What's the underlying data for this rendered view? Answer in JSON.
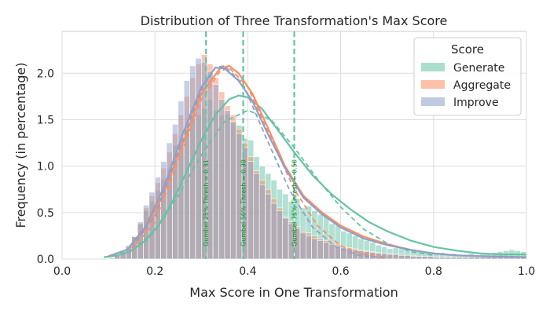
{
  "chart_data": {
    "type": "histogram",
    "title": "Distribution of Three Transformation's Max Score",
    "xlabel": "Max Score in One Transformation",
    "ylabel": "Frequency (in percentage)",
    "xlim": [
      0.0,
      1.0
    ],
    "ylim": [
      0.0,
      2.45
    ],
    "xticks": [
      "0.0",
      "0.2",
      "0.4",
      "0.6",
      "0.8",
      "1.0"
    ],
    "yticks": [
      "0.0",
      "0.5",
      "1.0",
      "1.5",
      "2.0"
    ],
    "xtick_values": [
      0.0,
      0.2,
      0.4,
      0.6,
      0.8,
      1.0
    ],
    "ytick_values": [
      0.0,
      0.5,
      1.0,
      1.5,
      2.0
    ],
    "grid": true,
    "legend": {
      "title": "Score",
      "position": "top-right"
    },
    "bin_start": 0.1,
    "bin_width": 0.0125,
    "series": [
      {
        "name": "Generate",
        "color": "#66c2a5",
        "values": [
          0.02,
          0.05,
          0.09,
          0.15,
          0.25,
          0.38,
          0.52,
          0.62,
          0.74,
          0.86,
          0.98,
          1.22,
          1.25,
          1.4,
          1.55,
          1.55,
          1.62,
          1.72,
          1.6,
          1.55,
          1.56,
          1.46,
          1.44,
          1.3,
          1.28,
          1.1,
          1.0,
          0.92,
          0.85,
          0.75,
          0.7,
          0.62,
          0.65,
          0.55,
          0.57,
          0.52,
          0.48,
          0.46,
          0.38,
          0.36,
          0.3,
          0.28,
          0.25,
          0.22,
          0.2,
          0.18,
          0.15,
          0.13,
          0.11,
          0.12,
          0.11,
          0.09,
          0.1,
          0.08,
          0.07,
          0.08,
          0.06,
          0.07,
          0.05,
          0.06,
          0.05,
          0.05,
          0.06,
          0.04,
          0.05,
          0.06,
          0.07,
          0.08,
          0.09,
          0.1,
          0.09,
          0.08
        ],
        "kde": [
          [
            0.09,
            0.02
          ],
          [
            0.12,
            0.04
          ],
          [
            0.15,
            0.09
          ],
          [
            0.18,
            0.2
          ],
          [
            0.21,
            0.38
          ],
          [
            0.24,
            0.64
          ],
          [
            0.27,
            0.96
          ],
          [
            0.3,
            1.28
          ],
          [
            0.33,
            1.55
          ],
          [
            0.36,
            1.72
          ],
          [
            0.38,
            1.76
          ],
          [
            0.4,
            1.74
          ],
          [
            0.43,
            1.62
          ],
          [
            0.46,
            1.42
          ],
          [
            0.5,
            1.15
          ],
          [
            0.54,
            0.9
          ],
          [
            0.58,
            0.7
          ],
          [
            0.62,
            0.54
          ],
          [
            0.66,
            0.4
          ],
          [
            0.7,
            0.3
          ],
          [
            0.75,
            0.2
          ],
          [
            0.8,
            0.13
          ],
          [
            0.85,
            0.09
          ],
          [
            0.9,
            0.06
          ],
          [
            0.95,
            0.05
          ],
          [
            1.0,
            0.05
          ]
        ],
        "normal_fit": [
          [
            0.15,
            0.09
          ],
          [
            0.2,
            0.3
          ],
          [
            0.25,
            0.68
          ],
          [
            0.3,
            1.12
          ],
          [
            0.35,
            1.48
          ],
          [
            0.4,
            1.6
          ],
          [
            0.45,
            1.5
          ],
          [
            0.5,
            1.2
          ],
          [
            0.55,
            0.86
          ],
          [
            0.6,
            0.56
          ],
          [
            0.65,
            0.32
          ],
          [
            0.7,
            0.17
          ],
          [
            0.75,
            0.08
          ],
          [
            0.8,
            0.04
          ]
        ]
      },
      {
        "name": "Aggregate",
        "color": "#fc8d62",
        "values": [
          0.01,
          0.04,
          0.08,
          0.14,
          0.24,
          0.38,
          0.55,
          0.68,
          0.82,
          0.98,
          1.15,
          1.35,
          1.55,
          1.75,
          1.95,
          2.1,
          2.2,
          2.1,
          1.95,
          1.8,
          1.65,
          1.55,
          1.4,
          1.25,
          1.1,
          0.95,
          0.85,
          0.75,
          0.65,
          0.55,
          0.45,
          0.4,
          0.35,
          0.3,
          0.28,
          0.25,
          0.22,
          0.2,
          0.18,
          0.16,
          0.14,
          0.12,
          0.11,
          0.1,
          0.09,
          0.08,
          0.07,
          0.06,
          0.06,
          0.05,
          0.05,
          0.04,
          0.04,
          0.03,
          0.03,
          0.03,
          0.02,
          0.02,
          0.02,
          0.02,
          0.02,
          0.02,
          0.02,
          0.02,
          0.02,
          0.02,
          0.02,
          0.02,
          0.02,
          0.02,
          0.02,
          0.02
        ],
        "kde": [
          [
            0.1,
            0.03
          ],
          [
            0.14,
            0.1
          ],
          [
            0.18,
            0.32
          ],
          [
            0.22,
            0.72
          ],
          [
            0.26,
            1.25
          ],
          [
            0.3,
            1.78
          ],
          [
            0.34,
            2.05
          ],
          [
            0.36,
            2.08
          ],
          [
            0.38,
            2.0
          ],
          [
            0.41,
            1.78
          ],
          [
            0.44,
            1.45
          ],
          [
            0.48,
            1.0
          ],
          [
            0.52,
            0.68
          ],
          [
            0.56,
            0.5
          ],
          [
            0.6,
            0.36
          ],
          [
            0.65,
            0.24
          ],
          [
            0.7,
            0.16
          ],
          [
            0.75,
            0.1
          ],
          [
            0.8,
            0.06
          ],
          [
            0.85,
            0.04
          ],
          [
            0.9,
            0.03
          ],
          [
            1.0,
            0.02
          ]
        ],
        "normal_fit": [
          [
            0.15,
            0.1
          ],
          [
            0.2,
            0.4
          ],
          [
            0.25,
            1.05
          ],
          [
            0.3,
            1.72
          ],
          [
            0.34,
            2.02
          ],
          [
            0.36,
            2.06
          ],
          [
            0.4,
            1.85
          ],
          [
            0.45,
            1.3
          ],
          [
            0.5,
            0.75
          ],
          [
            0.55,
            0.36
          ],
          [
            0.6,
            0.14
          ],
          [
            0.65,
            0.05
          ],
          [
            0.7,
            0.02
          ]
        ]
      },
      {
        "name": "Improve",
        "color": "#8da0cb",
        "values": [
          0.01,
          0.04,
          0.08,
          0.14,
          0.24,
          0.4,
          0.58,
          0.72,
          0.88,
          1.05,
          1.25,
          1.45,
          1.7,
          1.92,
          2.08,
          2.16,
          2.12,
          2.02,
          1.88,
          1.72,
          1.6,
          1.48,
          1.35,
          1.2,
          1.05,
          0.92,
          0.8,
          0.7,
          0.6,
          0.52,
          0.44,
          0.38,
          0.33,
          0.28,
          0.25,
          0.22,
          0.2,
          0.18,
          0.16,
          0.14,
          0.12,
          0.11,
          0.1,
          0.09,
          0.08,
          0.07,
          0.06,
          0.06,
          0.05,
          0.05,
          0.04,
          0.04,
          0.03,
          0.03,
          0.03,
          0.03,
          0.02,
          0.02,
          0.02,
          0.02,
          0.02,
          0.02,
          0.02,
          0.02,
          0.02,
          0.02,
          0.02,
          0.02,
          0.02,
          0.02,
          0.02,
          0.02
        ],
        "kde": [
          [
            0.1,
            0.03
          ],
          [
            0.14,
            0.1
          ],
          [
            0.18,
            0.35
          ],
          [
            0.22,
            0.78
          ],
          [
            0.26,
            1.35
          ],
          [
            0.3,
            1.85
          ],
          [
            0.33,
            2.06
          ],
          [
            0.35,
            2.05
          ],
          [
            0.38,
            1.92
          ],
          [
            0.41,
            1.7
          ],
          [
            0.44,
            1.38
          ],
          [
            0.48,
            0.98
          ],
          [
            0.52,
            0.66
          ],
          [
            0.56,
            0.48
          ],
          [
            0.6,
            0.34
          ],
          [
            0.65,
            0.22
          ],
          [
            0.7,
            0.15
          ],
          [
            0.75,
            0.1
          ],
          [
            0.8,
            0.06
          ],
          [
            0.85,
            0.04
          ],
          [
            0.9,
            0.03
          ],
          [
            1.0,
            0.02
          ]
        ],
        "normal_fit": [
          [
            0.15,
            0.12
          ],
          [
            0.2,
            0.46
          ],
          [
            0.25,
            1.15
          ],
          [
            0.3,
            1.82
          ],
          [
            0.33,
            2.06
          ],
          [
            0.35,
            2.08
          ],
          [
            0.39,
            1.88
          ],
          [
            0.44,
            1.3
          ],
          [
            0.49,
            0.74
          ],
          [
            0.54,
            0.34
          ],
          [
            0.59,
            0.13
          ],
          [
            0.64,
            0.04
          ],
          [
            0.7,
            0.01
          ]
        ]
      }
    ],
    "thresholds": [
      {
        "x": 0.31,
        "label": "Gumbel 25% Thresh = 0.31"
      },
      {
        "x": 0.39,
        "label": "Gumbel 50% Thresh = 0.39"
      },
      {
        "x": 0.5,
        "label": "Gumbel 75% Thresh = 0.50"
      }
    ],
    "threshold_color": "#66c2a5"
  }
}
